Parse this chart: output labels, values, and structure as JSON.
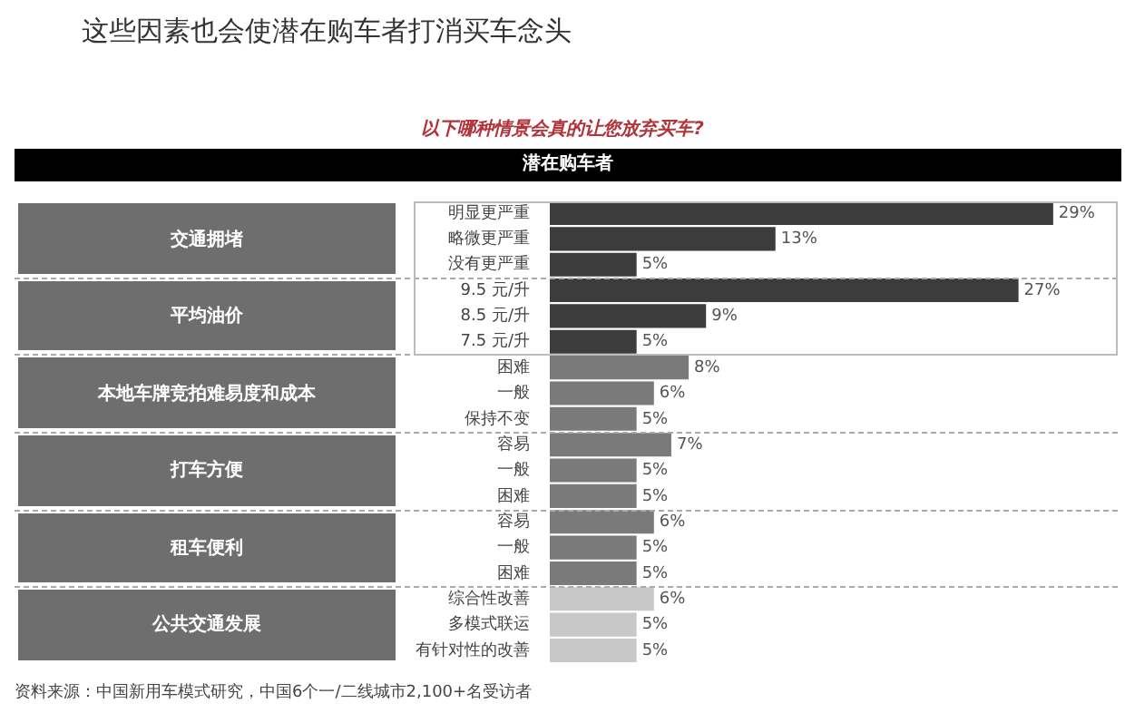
{
  "chart_data": {
    "type": "bar",
    "orientation": "horizontal",
    "title": "这些因素也会使潜在购车者打消买车念头",
    "subtitle": "以下哪种情景会真的让您放弃买车?",
    "categories": [
      "明显更严重",
      "略微更严重",
      "没有更严重",
      "9.5 元/升",
      "8.5 元/升",
      "7.5 元/升",
      "困难",
      "一般",
      "保持不变",
      "容易",
      "一般",
      "困难",
      "容易",
      "一般",
      "困难",
      "综合性改善",
      "多模式联运",
      "有针对性的改善"
    ],
    "values": [
      29,
      13,
      5,
      27,
      9,
      5,
      8,
      6,
      5,
      7,
      5,
      5,
      6,
      5,
      5,
      6,
      5,
      5
    ],
    "colors": [
      "#3c3c3c",
      "#3c3c3c",
      "#3c3c3c",
      "#3c3c3c",
      "#3c3c3c",
      "#3c3c3c",
      "#7a7a7a",
      "#7a7a7a",
      "#7a7a7a",
      "#7a7a7a",
      "#7a7a7a",
      "#7a7a7a",
      "#7a7a7a",
      "#7a7a7a",
      "#7a7a7a",
      "#c8c8c8",
      "#c8c8c8",
      "#c8c8c8"
    ],
    "value_labels": [
      "29%",
      "13%",
      "5%",
      "27%",
      "9%",
      "5%",
      "8%",
      "6%",
      "5%",
      "7%",
      "5%",
      "5%",
      "6%",
      "5%",
      "5%",
      "6%",
      "5%",
      "5%"
    ],
    "annotations": [
      "潜在购车者",
      "交通拥堵",
      "平均油价",
      "本地车牌竞拍难易度和成本",
      "打车方便",
      "租车便利",
      "公共交通发展",
      "资料来源：中国新用车模式研究，中国6个一/二线城市2,100+名受访者"
    ],
    "tick_labels": "y"
  }
}
